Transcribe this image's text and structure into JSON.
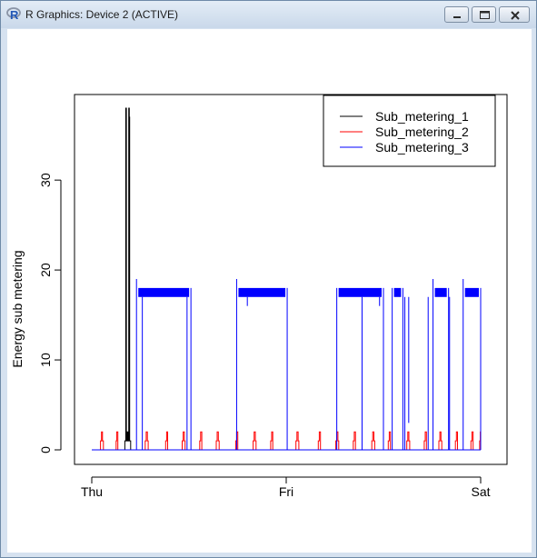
{
  "window": {
    "title": "R Graphics: Device 2 (ACTIVE)",
    "icons": {
      "app": "r-logo-icon",
      "minimize": "minimize-icon",
      "maximize": "maximize-icon",
      "close": "close-icon"
    }
  },
  "chart_data": {
    "type": "line",
    "title": "",
    "xlabel": "",
    "ylabel": "Energy sub metering",
    "x_ticks": [
      "Thu",
      "Fri",
      "Sat"
    ],
    "y_ticks": [
      0,
      10,
      20,
      30
    ],
    "ylim": [
      0,
      38
    ],
    "grid": false,
    "legend_position": "top-right",
    "series": [
      {
        "name": "Sub_metering_1",
        "color": "#000000",
        "points": [
          [
            0,
            0
          ],
          [
            0.17,
            0
          ],
          [
            0.17,
            1
          ],
          [
            0.175,
            1
          ],
          [
            0.175,
            38
          ],
          [
            0.178,
            38
          ],
          [
            0.178,
            1
          ],
          [
            0.182,
            1
          ],
          [
            0.182,
            2
          ],
          [
            0.186,
            2
          ],
          [
            0.186,
            1
          ],
          [
            0.19,
            1
          ],
          [
            0.19,
            38
          ],
          [
            0.193,
            38
          ],
          [
            0.193,
            37
          ],
          [
            0.195,
            37
          ],
          [
            0.195,
            1
          ],
          [
            0.2,
            1
          ],
          [
            0.2,
            0
          ],
          [
            2,
            0
          ]
        ]
      },
      {
        "name": "Sub_metering_2",
        "color": "#ff0000",
        "points": [
          [
            0,
            0
          ],
          [
            0.045,
            0
          ],
          [
            0.045,
            1
          ],
          [
            0.05,
            1
          ],
          [
            0.05,
            2
          ],
          [
            0.055,
            2
          ],
          [
            0.055,
            1
          ],
          [
            0.06,
            1
          ],
          [
            0.06,
            0
          ],
          [
            0.125,
            0
          ],
          [
            0.125,
            1
          ],
          [
            0.128,
            1
          ],
          [
            0.128,
            2
          ],
          [
            0.134,
            2
          ],
          [
            0.134,
            0
          ],
          [
            0.275,
            0
          ],
          [
            0.275,
            1
          ],
          [
            0.28,
            1
          ],
          [
            0.28,
            2
          ],
          [
            0.286,
            2
          ],
          [
            0.286,
            1
          ],
          [
            0.29,
            1
          ],
          [
            0.29,
            0
          ],
          [
            0.38,
            0
          ],
          [
            0.38,
            1
          ],
          [
            0.385,
            1
          ],
          [
            0.385,
            2
          ],
          [
            0.39,
            2
          ],
          [
            0.39,
            0
          ],
          [
            0.465,
            0
          ],
          [
            0.465,
            1
          ],
          [
            0.47,
            1
          ],
          [
            0.47,
            2
          ],
          [
            0.476,
            2
          ],
          [
            0.476,
            1
          ],
          [
            0.48,
            1
          ],
          [
            0.48,
            0
          ],
          [
            0.555,
            0
          ],
          [
            0.555,
            1
          ],
          [
            0.56,
            1
          ],
          [
            0.56,
            2
          ],
          [
            0.566,
            2
          ],
          [
            0.566,
            0
          ],
          [
            0.64,
            0
          ],
          [
            0.64,
            1
          ],
          [
            0.645,
            1
          ],
          [
            0.645,
            2
          ],
          [
            0.651,
            2
          ],
          [
            0.651,
            1
          ],
          [
            0.655,
            1
          ],
          [
            0.655,
            0
          ],
          [
            0.74,
            0
          ],
          [
            0.74,
            1
          ],
          [
            0.745,
            1
          ],
          [
            0.745,
            2
          ],
          [
            0.751,
            2
          ],
          [
            0.751,
            0
          ],
          [
            0.83,
            0
          ],
          [
            0.83,
            1
          ],
          [
            0.835,
            1
          ],
          [
            0.835,
            2
          ],
          [
            0.841,
            2
          ],
          [
            0.841,
            1
          ],
          [
            0.845,
            1
          ],
          [
            0.845,
            0
          ],
          [
            0.92,
            0
          ],
          [
            0.92,
            1
          ],
          [
            0.925,
            1
          ],
          [
            0.925,
            2
          ],
          [
            0.931,
            2
          ],
          [
            0.931,
            0
          ],
          [
            1.05,
            0
          ],
          [
            1.05,
            1
          ],
          [
            1.055,
            1
          ],
          [
            1.055,
            2
          ],
          [
            1.061,
            2
          ],
          [
            1.061,
            1
          ],
          [
            1.065,
            1
          ],
          [
            1.065,
            0
          ],
          [
            1.165,
            0
          ],
          [
            1.165,
            1
          ],
          [
            1.17,
            1
          ],
          [
            1.17,
            2
          ],
          [
            1.176,
            2
          ],
          [
            1.176,
            0
          ],
          [
            1.255,
            0
          ],
          [
            1.255,
            1
          ],
          [
            1.26,
            1
          ],
          [
            1.26,
            2
          ],
          [
            1.266,
            2
          ],
          [
            1.266,
            1
          ],
          [
            1.27,
            1
          ],
          [
            1.27,
            0
          ],
          [
            1.345,
            0
          ],
          [
            1.345,
            1
          ],
          [
            1.35,
            1
          ],
          [
            1.35,
            2
          ],
          [
            1.356,
            2
          ],
          [
            1.356,
            0
          ],
          [
            1.44,
            0
          ],
          [
            1.44,
            1
          ],
          [
            1.445,
            1
          ],
          [
            1.445,
            2
          ],
          [
            1.451,
            2
          ],
          [
            1.451,
            1
          ],
          [
            1.455,
            1
          ],
          [
            1.455,
            0
          ],
          [
            1.525,
            0
          ],
          [
            1.525,
            1
          ],
          [
            1.53,
            1
          ],
          [
            1.53,
            2
          ],
          [
            1.536,
            2
          ],
          [
            1.536,
            0
          ],
          [
            1.62,
            0
          ],
          [
            1.62,
            1
          ],
          [
            1.625,
            1
          ],
          [
            1.625,
            2
          ],
          [
            1.631,
            2
          ],
          [
            1.631,
            1
          ],
          [
            1.635,
            1
          ],
          [
            1.635,
            0
          ],
          [
            1.71,
            0
          ],
          [
            1.71,
            1
          ],
          [
            1.715,
            1
          ],
          [
            1.715,
            2
          ],
          [
            1.721,
            2
          ],
          [
            1.721,
            0
          ],
          [
            1.785,
            0
          ],
          [
            1.785,
            1
          ],
          [
            1.79,
            1
          ],
          [
            1.79,
            2
          ],
          [
            1.796,
            2
          ],
          [
            1.796,
            1
          ],
          [
            1.8,
            1
          ],
          [
            1.8,
            0
          ],
          [
            1.87,
            0
          ],
          [
            1.87,
            1
          ],
          [
            1.875,
            1
          ],
          [
            1.875,
            2
          ],
          [
            1.881,
            2
          ],
          [
            1.881,
            0
          ],
          [
            1.95,
            0
          ],
          [
            1.95,
            1
          ],
          [
            1.955,
            1
          ],
          [
            1.955,
            2
          ],
          [
            1.961,
            2
          ],
          [
            1.961,
            0
          ],
          [
            1.995,
            0
          ],
          [
            1.995,
            1
          ],
          [
            1.998,
            1
          ],
          [
            1.998,
            2
          ],
          [
            2,
            2
          ]
        ]
      },
      {
        "name": "Sub_metering_3",
        "color": "#0000ff",
        "blocks": [
          [
            0.23,
            0.51,
            17,
            18,
            19
          ],
          [
            0.745,
            1.005,
            17,
            18,
            19
          ],
          [
            1.26,
            1.5,
            17,
            18,
            18
          ],
          [
            1.545,
            1.6,
            17,
            18,
            18
          ],
          [
            1.755,
            1.835,
            17,
            18,
            19
          ],
          [
            1.91,
            2.0,
            17,
            18,
            19
          ]
        ],
        "spikes": [
          [
            0.26,
            0
          ],
          [
            0.49,
            0
          ],
          [
            0.8,
            16
          ],
          [
            0.95,
            17
          ],
          [
            1.39,
            0
          ],
          [
            1.41,
            17
          ],
          [
            1.48,
            16
          ],
          [
            1.61,
            0
          ],
          [
            1.63,
            3
          ],
          [
            1.73,
            0
          ],
          [
            1.79,
            17
          ],
          [
            1.84,
            0
          ],
          [
            1.93,
            17
          ]
        ]
      }
    ]
  }
}
